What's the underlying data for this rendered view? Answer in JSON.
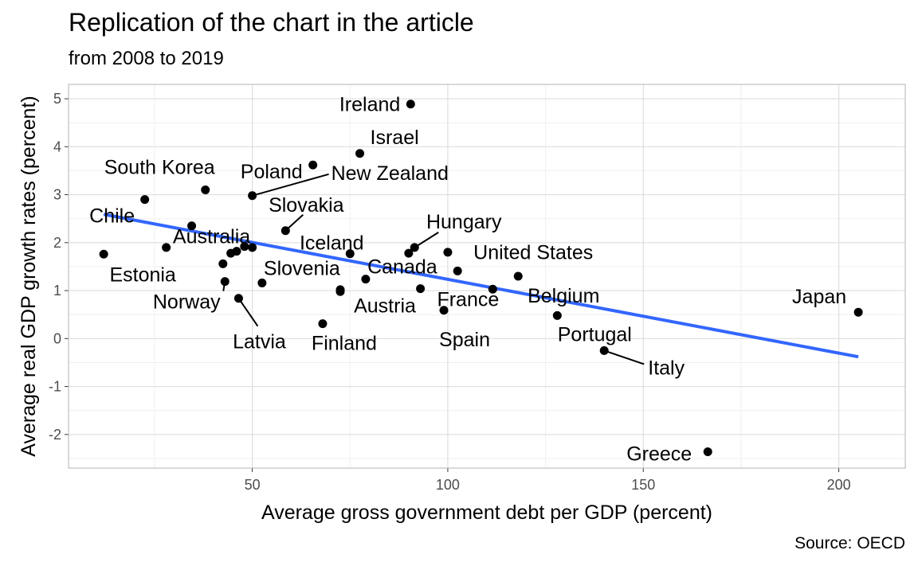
{
  "chart_data": {
    "type": "scatter",
    "title": "Replication of the chart in the article",
    "subtitle": "from 2008 to 2019",
    "xlabel": "Average gross government debt per GDP (percent)",
    "ylabel": "Average real GDP growth rates (percent)",
    "caption": "Source: OECD",
    "xlim": [
      3,
      217
    ],
    "ylim": [
      -2.7,
      5.3
    ],
    "x_ticks": [
      50,
      100,
      150,
      200
    ],
    "y_ticks": [
      5,
      4,
      3,
      2,
      1,
      0,
      -1,
      -2
    ],
    "x_tick_labels": [
      "50",
      "100",
      "150",
      "200"
    ],
    "y_tick_labels": [
      "5",
      "4",
      "3",
      "2",
      "1",
      "0",
      "-1",
      "-2"
    ],
    "grid": true,
    "point_color": "#000000",
    "trend_line": {
      "color": "#3366FF",
      "x": [
        12,
        205
      ],
      "y": [
        2.59,
        -0.38
      ]
    },
    "points": [
      {
        "label": "Ireland",
        "x": 90.5,
        "y": 4.89
      },
      {
        "label": "Israel",
        "x": 77.5,
        "y": 3.86
      },
      {
        "label": "Poland",
        "x": 65.5,
        "y": 3.62
      },
      {
        "label": "New Zealand",
        "x": 50,
        "y": 2.98
      },
      {
        "label": "South Korea",
        "x": 38,
        "y": 3.1
      },
      {
        "label": "Chile",
        "x": 22.5,
        "y": 2.9
      },
      {
        "label": "Slovakia",
        "x": 58.5,
        "y": 2.25
      },
      {
        "label": "Hungary",
        "x": 91.5,
        "y": 1.9
      },
      {
        "label": "Iceland",
        "x": 75,
        "y": 1.77
      },
      {
        "label": "Australia",
        "x": 34.5,
        "y": 2.35
      },
      {
        "label": "Estonia",
        "x": 12,
        "y": 1.76
      },
      {
        "label": "United States",
        "x": 102.5,
        "y": 1.41
      },
      {
        "label": "Slovenia",
        "x": 52.5,
        "y": 1.16
      },
      {
        "label": "Canada",
        "x": 79,
        "y": 1.24
      },
      {
        "label": "Norway",
        "x": 43,
        "y": 1.19
      },
      {
        "label": "Belgium",
        "x": 118,
        "y": 1.3
      },
      {
        "label": "France",
        "x": 111.5,
        "y": 1.03
      },
      {
        "label": "Latvia",
        "x": 46.5,
        "y": 0.84
      },
      {
        "label": "Austria",
        "x": 72.5,
        "y": 0.98
      },
      {
        "label": "Spain",
        "x": 99,
        "y": 0.59
      },
      {
        "label": "Finland",
        "x": 68,
        "y": 0.31
      },
      {
        "label": "Portugal",
        "x": 128,
        "y": 0.48
      },
      {
        "label": "Japan",
        "x": 205,
        "y": 0.55
      },
      {
        "label": "Italy",
        "x": 140,
        "y": -0.25
      },
      {
        "label": "Greece",
        "x": 166.5,
        "y": -2.36
      },
      {
        "label": "",
        "x": 28,
        "y": 1.9
      },
      {
        "label": "",
        "x": 42.5,
        "y": 1.56
      },
      {
        "label": "",
        "x": 44.5,
        "y": 1.78
      },
      {
        "label": "",
        "x": 46,
        "y": 1.82
      },
      {
        "label": "",
        "x": 48,
        "y": 1.92
      },
      {
        "label": "",
        "x": 50,
        "y": 1.9
      },
      {
        "label": "",
        "x": 72.5,
        "y": 1.02
      },
      {
        "label": "",
        "x": 90,
        "y": 1.78
      },
      {
        "label": "",
        "x": 93,
        "y": 1.04
      },
      {
        "label": "",
        "x": 100,
        "y": 1.8
      }
    ]
  }
}
